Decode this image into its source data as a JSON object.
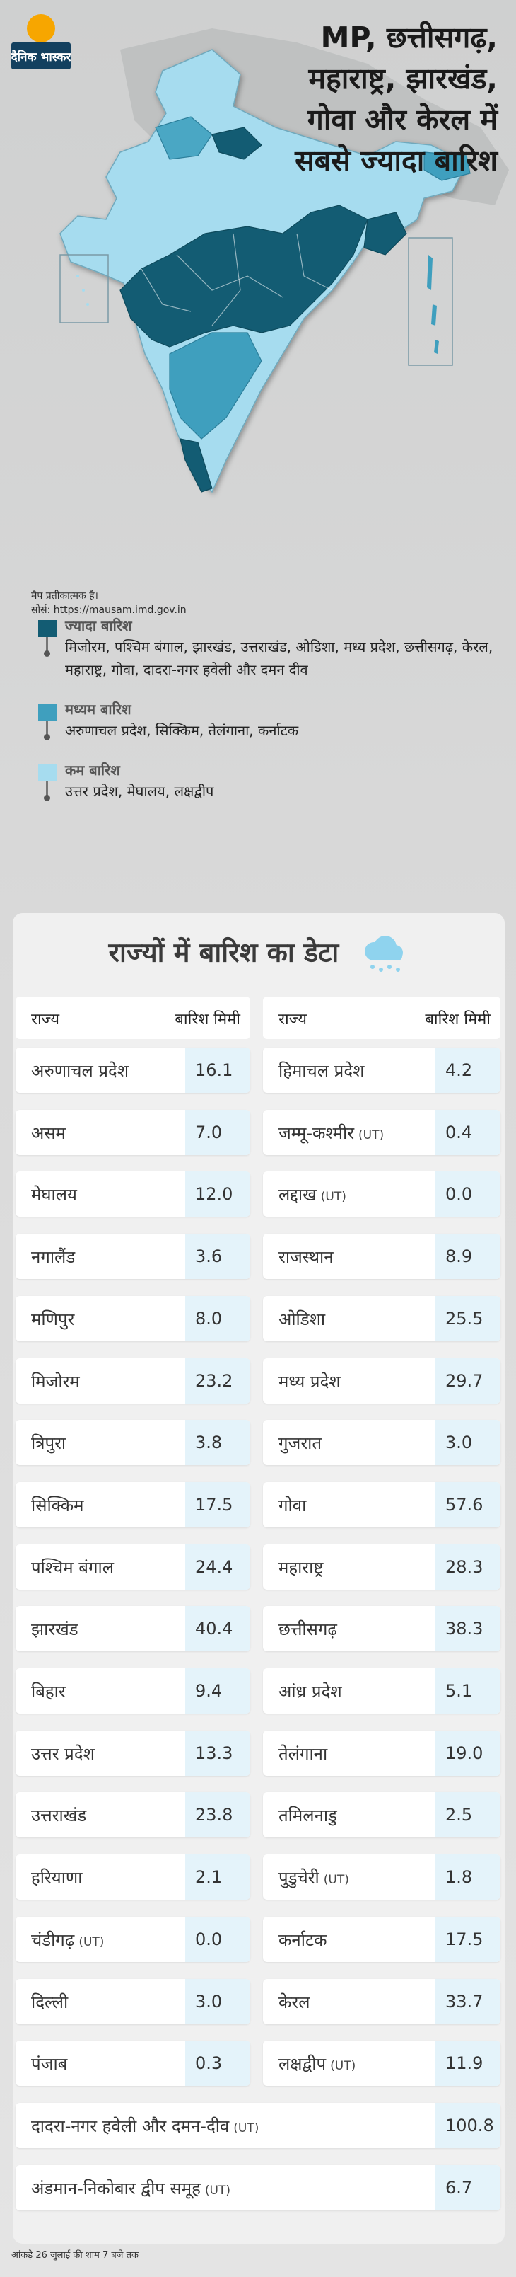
{
  "brand": {
    "name": "दैनिक भास्कर",
    "colors": {
      "dot": "#f7a600",
      "primary": "#13405f"
    }
  },
  "headline": [
    "MP, छत्तीसगढ़,",
    "महाराष्ट्र, झारखंड,",
    "गोवा और केरल में",
    "सबसे ज्यादा बारिश"
  ],
  "map": {
    "colors": {
      "high": "#135c73",
      "medium": "#3f9fbe",
      "low": "#a6dcef"
    },
    "note_line1": "मैप प्रतीकात्मक है।",
    "note_line2": "सोर्स: https://mausam.imd.gov.in"
  },
  "legend": [
    {
      "title": "ज्यादा बारिश",
      "color": "#135c73",
      "text": "मिजोरम, पश्चिम बंगाल, झारखंड, उत्तराखंड, ओडिशा, मध्य प्रदेश, छत्तीसगढ़, केरल, महाराष्ट्र, गोवा, दादरा-नगर हवेली और दमन दीव"
    },
    {
      "title": "मध्यम बारिश",
      "color": "#3f9fbe",
      "text": "अरुणाचल प्रदेश, सिक्किम, तेलंगाना, कर्नाटक"
    },
    {
      "title": "कम बारिश",
      "color": "#a6dcef",
      "text": "उत्तर प्रदेश, मेघालय, लक्षद्वीप"
    }
  ],
  "table": {
    "title": "राज्यों में बारिश का डेटा",
    "col_state": "राज्य",
    "col_rain": "बारिश मिमी",
    "left": [
      {
        "state": "अरुणाचल प्रदेश",
        "ut": "",
        "value": "16.1"
      },
      {
        "state": "असम",
        "ut": "",
        "value": "7.0"
      },
      {
        "state": "मेघालय",
        "ut": "",
        "value": "12.0"
      },
      {
        "state": "नगालैंड",
        "ut": "",
        "value": "3.6"
      },
      {
        "state": "मणिपुर",
        "ut": "",
        "value": "8.0"
      },
      {
        "state": "मिजोरम",
        "ut": "",
        "value": "23.2"
      },
      {
        "state": "त्रिपुरा",
        "ut": "",
        "value": "3.8"
      },
      {
        "state": "सिक्किम",
        "ut": "",
        "value": "17.5"
      },
      {
        "state": "पश्चिम बंगाल",
        "ut": "",
        "value": "24.4"
      },
      {
        "state": "झारखंड",
        "ut": "",
        "value": "40.4"
      },
      {
        "state": "बिहार",
        "ut": "",
        "value": "9.4"
      },
      {
        "state": "उत्तर प्रदेश",
        "ut": "",
        "value": "13.3"
      },
      {
        "state": "उत्तराखंड",
        "ut": "",
        "value": "23.8"
      },
      {
        "state": "हरियाणा",
        "ut": "",
        "value": "2.1"
      },
      {
        "state": "चंडीगढ़",
        "ut": "(UT)",
        "value": "0.0"
      },
      {
        "state": "दिल्ली",
        "ut": "",
        "value": "3.0"
      },
      {
        "state": "पंजाब",
        "ut": "",
        "value": "0.3"
      }
    ],
    "right": [
      {
        "state": "हिमाचल प्रदेश",
        "ut": "",
        "value": "4.2"
      },
      {
        "state": "जम्मू-कश्मीर",
        "ut": "(UT)",
        "value": "0.4"
      },
      {
        "state": "लद्दाख",
        "ut": "(UT)",
        "value": "0.0"
      },
      {
        "state": "राजस्थान",
        "ut": "",
        "value": "8.9"
      },
      {
        "state": "ओडिशा",
        "ut": "",
        "value": "25.5"
      },
      {
        "state": "मध्य प्रदेश",
        "ut": "",
        "value": "29.7"
      },
      {
        "state": "गुजरात",
        "ut": "",
        "value": "3.0"
      },
      {
        "state": "गोवा",
        "ut": "",
        "value": "57.6"
      },
      {
        "state": "महाराष्ट्र",
        "ut": "",
        "value": "28.3"
      },
      {
        "state": "छत्तीसगढ़",
        "ut": "",
        "value": "38.3"
      },
      {
        "state": "आंध्र प्रदेश",
        "ut": "",
        "value": "5.1"
      },
      {
        "state": "तेलंगाना",
        "ut": "",
        "value": "19.0"
      },
      {
        "state": "तमिलनाडु",
        "ut": "",
        "value": "2.5"
      },
      {
        "state": "पुडुचेरी",
        "ut": "(UT)",
        "value": "1.8"
      },
      {
        "state": "कर्नाटक",
        "ut": "",
        "value": "17.5"
      },
      {
        "state": "केरल",
        "ut": "",
        "value": "33.7"
      },
      {
        "state": "लक्षद्वीप",
        "ut": "(UT)",
        "value": "11.9"
      }
    ],
    "full": [
      {
        "state": "दादरा-नगर हवेली और दमन-दीव",
        "ut": "(UT)",
        "value": "100.8"
      },
      {
        "state": "अंडमान-निकोबार द्वीप समूह",
        "ut": "(UT)",
        "value": "6.7"
      }
    ]
  },
  "footnote": "आंकड़े 26 जुलाई की शाम 7 बजे तक"
}
